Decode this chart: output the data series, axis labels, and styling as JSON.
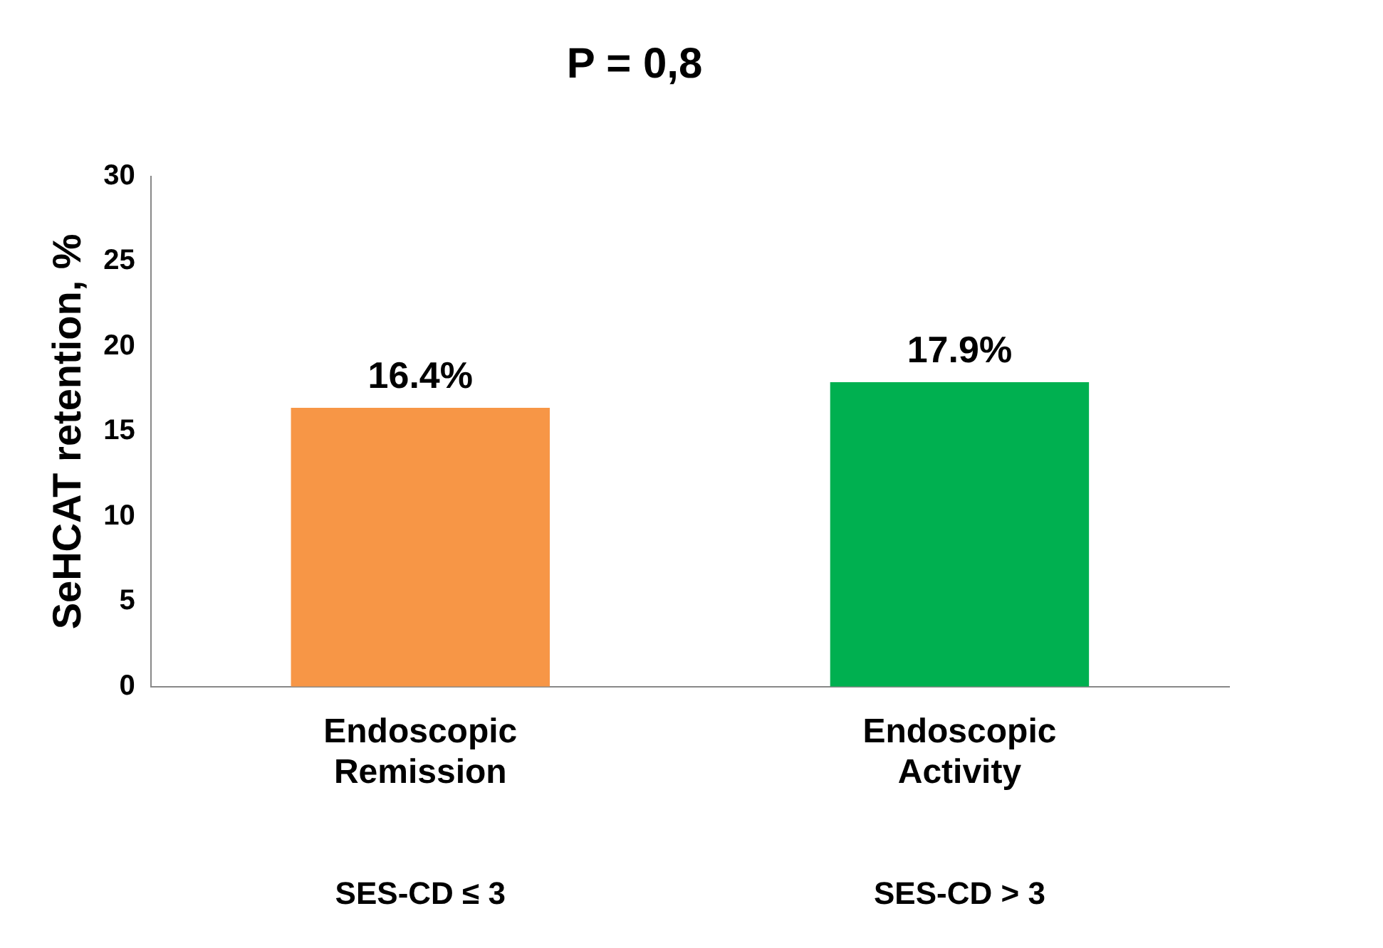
{
  "chart_data": {
    "type": "bar",
    "title": "P = 0,8",
    "ylabel": "SeHCAT retention, %",
    "categories": [
      "Endoscopic Remission",
      "Endoscopic Activity"
    ],
    "values": [
      16.4,
      17.9
    ],
    "colors": [
      "#f79646",
      "#00b050"
    ],
    "value_labels": [
      "16.4%",
      "17.9%"
    ],
    "ylim": [
      0,
      30
    ],
    "yticks": [
      0,
      5,
      10,
      15,
      20,
      25,
      30
    ],
    "grid": false,
    "legend": false,
    "annotations": [
      "SES-CD ≤ 3",
      "SES-CD > 3"
    ]
  }
}
